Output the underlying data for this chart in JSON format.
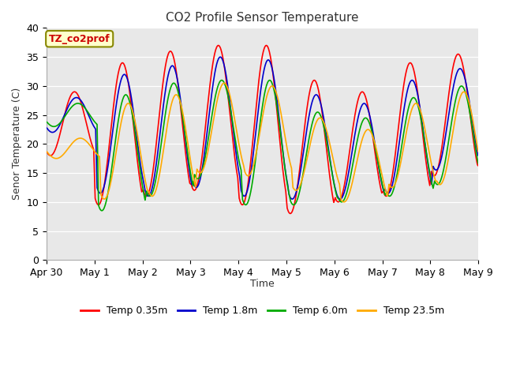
{
  "title": "CO2 Profile Sensor Temperature",
  "ylabel": "Senor Temperature (C)",
  "xlabel": "Time",
  "annotation": "TZ_co2prof",
  "ylim": [
    0,
    40
  ],
  "yticks": [
    0,
    5,
    10,
    15,
    20,
    25,
    30,
    35,
    40
  ],
  "x_labels": [
    "Apr 30",
    "May 1",
    "May 2",
    "May 3",
    "May 4",
    "May 5",
    "May 6",
    "May 7",
    "May 8",
    "May 9"
  ],
  "series_names": [
    "Temp 0.35m",
    "Temp 1.8m",
    "Temp 6.0m",
    "Temp 23.5m"
  ],
  "series_colors": [
    "#ff0000",
    "#0000cc",
    "#00aa00",
    "#ffaa00"
  ],
  "background_color": "#e8e8e8",
  "fig_background": "#ffffff"
}
